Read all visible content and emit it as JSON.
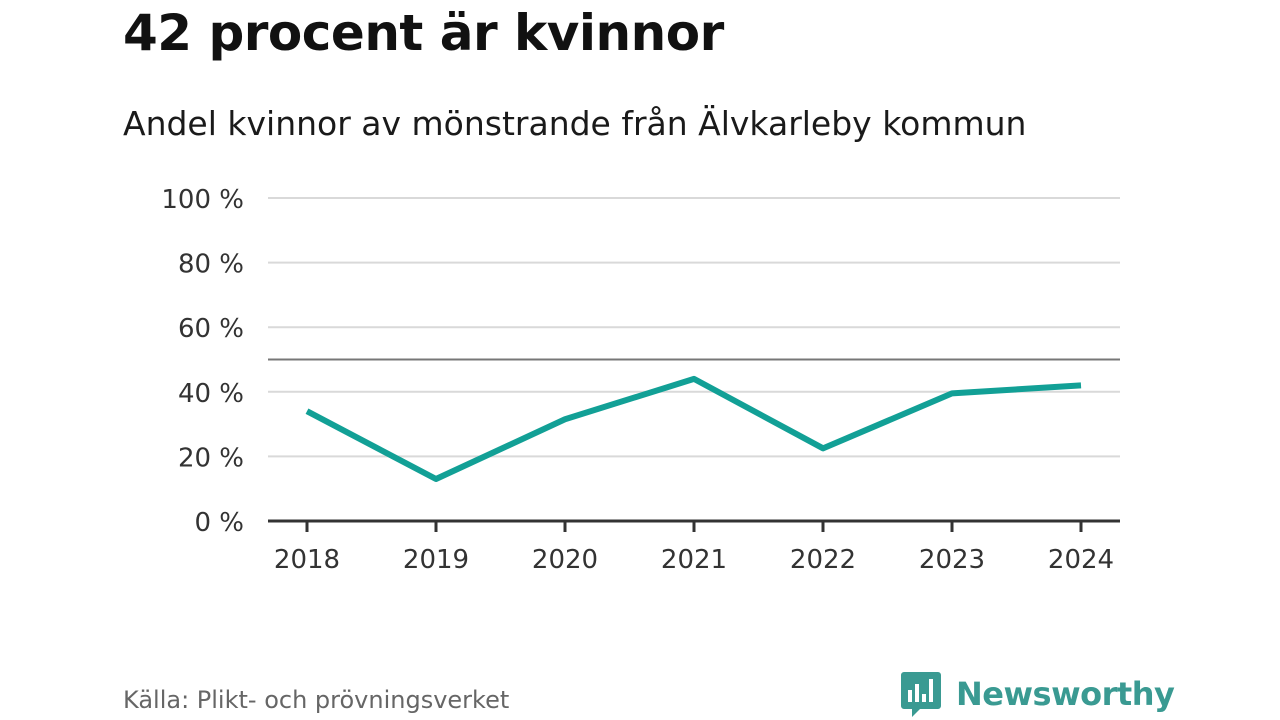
{
  "colors": {
    "line": "#12a096",
    "grid": "#d9d9d9",
    "reference": "#777777",
    "axis": "#333333",
    "brand": "#3a9a92"
  },
  "chart_data": {
    "type": "line",
    "title": "42 procent är kvinnor",
    "subtitle": "Andel kvinnor av mönstrande från Älvkarleby kommun",
    "categories": [
      "2018",
      "2019",
      "2020",
      "2021",
      "2022",
      "2023",
      "2024"
    ],
    "series": [
      {
        "name": "Andel kvinnor",
        "values": [
          34,
          13,
          31.5,
          44,
          22.5,
          39.5,
          42
        ]
      }
    ],
    "ylim": [
      0,
      100
    ],
    "yticks": [
      0,
      20,
      40,
      60,
      80,
      100
    ],
    "ytick_labels": [
      "0 %",
      "20 %",
      "40 %",
      "60 %",
      "80 %",
      "100 %"
    ],
    "reference_line": 50,
    "grid": true,
    "xlabel": "",
    "ylabel": ""
  },
  "footer": {
    "source": "Källa: Plikt- och prövningsverket",
    "brand": "Newsworthy",
    "brand_icon": "bar-chart-speech-icon"
  }
}
